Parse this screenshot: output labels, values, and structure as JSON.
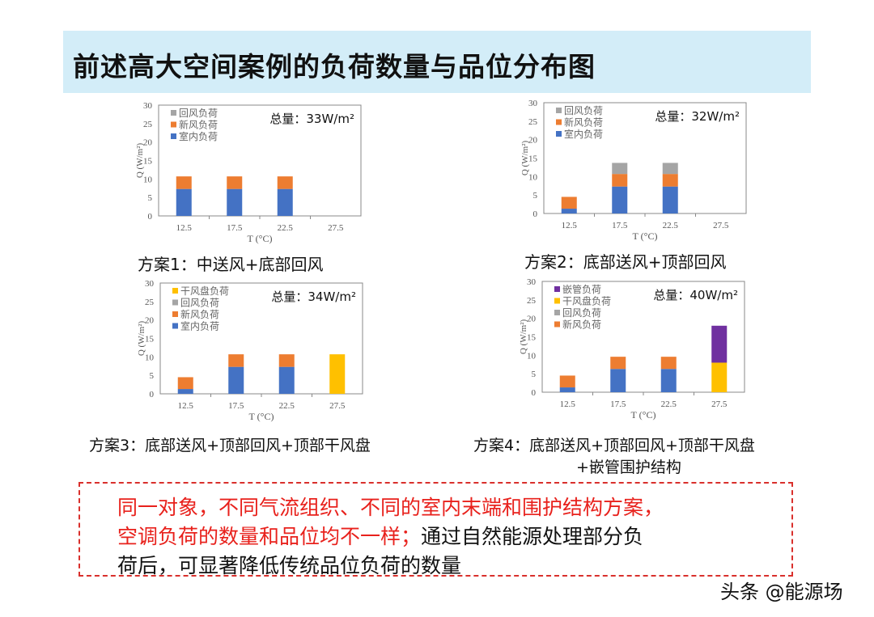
{
  "title": "前述高大空间案例的负荷数量与品位分布图",
  "colors": {
    "室内负荷": "#4472c4",
    "新风负荷": "#ed7d31",
    "回风负荷": "#a5a5a5",
    "干风盘负荷": "#ffc000",
    "嵌管负荷": "#7030a0"
  },
  "chart_data": [
    {
      "type": "bar",
      "stacked": true,
      "title": "方案1：中送风+底部回风",
      "total_label": "总量：33W/m²",
      "xlabel": "T (°C)",
      "ylabel": "Q (W/m²)",
      "ylim": [
        0,
        30
      ],
      "yticks": [
        "0",
        "5",
        "10",
        "15",
        "20",
        "25",
        "30"
      ],
      "categories": [
        "12.5",
        "17.5",
        "22.5",
        "27.5"
      ],
      "legend": [
        "回风负荷",
        "新风负荷",
        "室内负荷"
      ],
      "series": [
        {
          "name": "室内负荷",
          "values": [
            7.3,
            7.3,
            7.3,
            0
          ]
        },
        {
          "name": "新风负荷",
          "values": [
            3.4,
            3.4,
            3.4,
            0
          ]
        },
        {
          "name": "回风负荷",
          "values": [
            0,
            0,
            0,
            0
          ]
        }
      ]
    },
    {
      "type": "bar",
      "stacked": true,
      "title": "方案2：底部送风+顶部回风",
      "total_label": "总量：32W/m²",
      "xlabel": "T (°C)",
      "ylabel": "Q (W/m²)",
      "ylim": [
        0,
        30
      ],
      "yticks": [
        "0",
        "5",
        "10",
        "15",
        "20",
        "25",
        "30"
      ],
      "categories": [
        "12.5",
        "17.5",
        "22.5",
        "27.5"
      ],
      "legend": [
        "回风负荷",
        "新风负荷",
        "室内负荷"
      ],
      "series": [
        {
          "name": "室内负荷",
          "values": [
            1.3,
            7.3,
            7.3,
            0
          ]
        },
        {
          "name": "新风负荷",
          "values": [
            3.2,
            3.4,
            3.4,
            0
          ]
        },
        {
          "name": "回风负荷",
          "values": [
            0,
            3.0,
            3.0,
            0
          ]
        }
      ]
    },
    {
      "type": "bar",
      "stacked": true,
      "title": "方案3：底部送风+顶部回风+顶部干风盘",
      "total_label": "总量：34W/m²",
      "xlabel": "T (°C)",
      "ylabel": "Q (W/m²)",
      "ylim": [
        0,
        30
      ],
      "yticks": [
        "0",
        "5",
        "10",
        "15",
        "20",
        "25",
        "30"
      ],
      "categories": [
        "12.5",
        "17.5",
        "22.5",
        "27.5"
      ],
      "legend": [
        "干风盘负荷",
        "回风负荷",
        "新风负荷",
        "室内负荷"
      ],
      "series": [
        {
          "name": "室内负荷",
          "values": [
            1.3,
            7.3,
            7.3,
            0
          ]
        },
        {
          "name": "新风负荷",
          "values": [
            3.2,
            3.4,
            3.4,
            0
          ]
        },
        {
          "name": "回风负荷",
          "values": [
            0,
            0,
            0,
            0
          ]
        },
        {
          "name": "干风盘负荷",
          "values": [
            0,
            0,
            0,
            10.7
          ]
        }
      ]
    },
    {
      "type": "bar",
      "stacked": true,
      "title": "方案4：底部送风+顶部回风+顶部干风盘",
      "title2": "+嵌管围护结构",
      "total_label": "总量：40W/m²",
      "xlabel": "T (°C)",
      "ylabel": "Q (W/m²)",
      "ylim": [
        0,
        30
      ],
      "yticks": [
        "0",
        "5",
        "10",
        "15",
        "20",
        "25",
        "30"
      ],
      "categories": [
        "12.5",
        "17.5",
        "22.5",
        "27.5"
      ],
      "legend": [
        "嵌管负荷",
        "干风盘负荷",
        "回风负荷",
        "新风负荷"
      ],
      "series": [
        {
          "name": "室内负荷",
          "values": [
            1.3,
            6.3,
            6.3,
            0
          ]
        },
        {
          "name": "新风负荷",
          "values": [
            3.2,
            3.3,
            3.3,
            0
          ]
        },
        {
          "name": "回风负荷",
          "values": [
            0,
            0,
            0,
            0
          ]
        },
        {
          "name": "干风盘负荷",
          "values": [
            0,
            0,
            0,
            8.0
          ]
        },
        {
          "name": "嵌管负荷",
          "values": [
            0,
            0,
            0,
            10.0
          ]
        }
      ]
    }
  ],
  "note": {
    "line1": "同一对象，不同气流组织、不同的室内末端和围护结构方案，",
    "line2_red": "空调负荷的数量和品位均不一样；",
    "line2_black": "通过自然能源处理部分负",
    "line3": "荷后，可显著降低传统品位负荷的数量"
  },
  "watermark": "头条 @能源场"
}
